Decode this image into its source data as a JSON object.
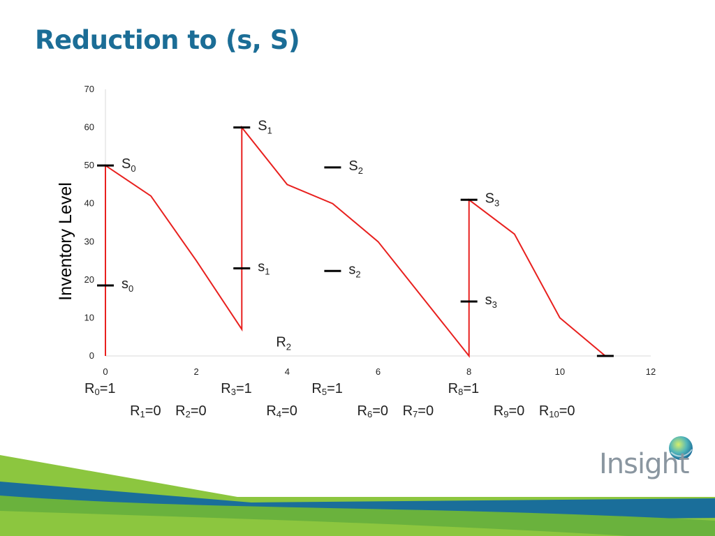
{
  "slide": {
    "title": "Reduction to (s, S)"
  },
  "chart_data": {
    "type": "line",
    "title": "",
    "xlabel": "",
    "ylabel": "Inventory Level",
    "xlim": [
      0,
      12
    ],
    "ylim": [
      0,
      70
    ],
    "x_ticks": [
      0,
      2,
      4,
      6,
      8,
      10,
      12
    ],
    "y_ticks": [
      0,
      10,
      20,
      30,
      40,
      50,
      60,
      70
    ],
    "grid": false,
    "series": [
      {
        "color": "#e8201e",
        "points": [
          [
            0,
            0
          ],
          [
            0,
            50
          ],
          [
            1,
            42
          ],
          [
            2,
            25
          ],
          [
            3,
            7
          ],
          [
            3,
            60
          ],
          [
            4,
            45
          ],
          [
            5,
            40
          ],
          [
            6,
            30
          ],
          [
            7,
            15
          ],
          [
            8,
            0
          ],
          [
            8,
            41
          ],
          [
            9,
            32
          ],
          [
            10,
            10
          ],
          [
            11,
            0
          ]
        ]
      }
    ],
    "level_markers": [
      {
        "x": 0,
        "y": 50,
        "label": "S",
        "sub": "0"
      },
      {
        "x": 0,
        "y": 18.5,
        "label": "s",
        "sub": "0"
      },
      {
        "x": 3,
        "y": 60,
        "label": "S",
        "sub": "1"
      },
      {
        "x": 3,
        "y": 23,
        "label": "s",
        "sub": "1"
      },
      {
        "x": 5,
        "y": 49.5,
        "label": "S",
        "sub": "2"
      },
      {
        "x": 5,
        "y": 22.3,
        "label": "s",
        "sub": "2"
      },
      {
        "x": 8,
        "y": 41,
        "label": "S",
        "sub": "3"
      },
      {
        "x": 8,
        "y": 14.3,
        "label": "s",
        "sub": "3"
      },
      {
        "x": 11,
        "y": 0,
        "label": "",
        "sub": ""
      }
    ],
    "annotations": [
      {
        "x": 4,
        "y": 3,
        "label": "R",
        "sub": "2"
      }
    ],
    "marker_color": "#000000",
    "line_color": "#e8201e"
  },
  "review_labels": [
    {
      "name": "R",
      "sub": "0",
      "value": "=1",
      "x": 0,
      "row": 1
    },
    {
      "name": "R",
      "sub": "1",
      "value": "=0",
      "x": 1,
      "row": 2
    },
    {
      "name": "R",
      "sub": "2",
      "value": "=0",
      "x": 2,
      "row": 2
    },
    {
      "name": "R",
      "sub": "3",
      "value": "=1",
      "x": 3,
      "row": 1
    },
    {
      "name": "R",
      "sub": "4",
      "value": "=0",
      "x": 4,
      "row": 2
    },
    {
      "name": "R",
      "sub": "5",
      "value": "=1",
      "x": 5,
      "row": 1
    },
    {
      "name": "R",
      "sub": "6",
      "value": "=0",
      "x": 6,
      "row": 2
    },
    {
      "name": "R",
      "sub": "7",
      "value": "=0",
      "x": 7,
      "row": 2
    },
    {
      "name": "R",
      "sub": "8",
      "value": "=1",
      "x": 8,
      "row": 1
    },
    {
      "name": "R",
      "sub": "9",
      "value": "=0",
      "x": 9,
      "row": 2
    },
    {
      "name": "R",
      "sub": "10",
      "value": "=0",
      "x": 10,
      "row": 2
    }
  ],
  "branding": {
    "logo_text": "Insight",
    "colors": {
      "title": "#1b6d96",
      "green": "#8cc63f",
      "blue": "#1a6e9a",
      "teal": "#3bb3c3"
    }
  }
}
